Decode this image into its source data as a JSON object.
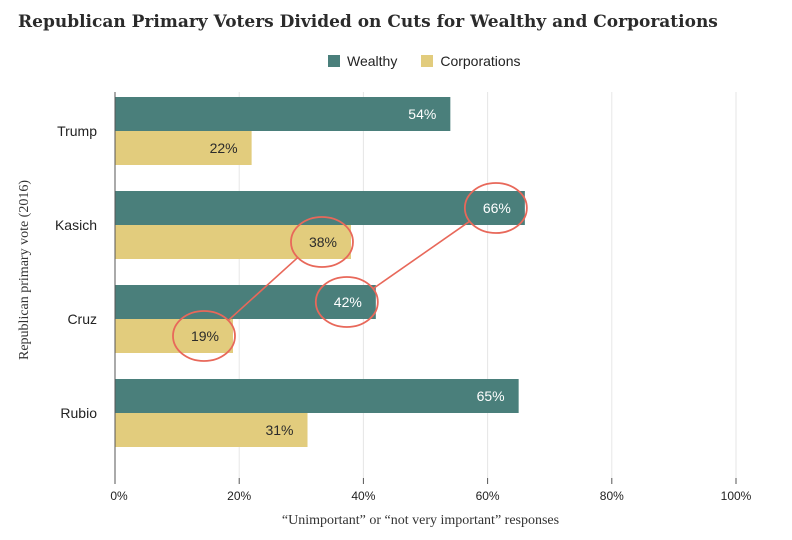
{
  "title": "Republican Primary Voters Divided on Cuts for Wealthy and Corporations",
  "legend": [
    {
      "name": "Wealthy",
      "color": "#4a7f7b"
    },
    {
      "name": "Corporations",
      "color": "#e2cc7d"
    }
  ],
  "colors": {
    "highlight": "#e8685a",
    "grid": "#e6e6e6",
    "axis": "#555555"
  },
  "chart_data": {
    "type": "bar",
    "orientation": "horizontal",
    "categories": [
      "Trump",
      "Kasich",
      "Cruz",
      "Rubio"
    ],
    "series": [
      {
        "name": "Wealthy",
        "values": [
          54,
          66,
          42,
          65
        ],
        "labels": [
          "54%",
          "66%",
          "42%",
          "65%"
        ]
      },
      {
        "name": "Corporations",
        "values": [
          22,
          38,
          19,
          31
        ],
        "labels": [
          "22%",
          "38%",
          "19%",
          "31%"
        ]
      }
    ],
    "xlabel": "“Unimportant” or “not very important” responses",
    "ylabel": "Republican primary vote (2016)",
    "xlim": [
      0,
      100
    ],
    "xticks": [
      0,
      20,
      40,
      60,
      80,
      100
    ],
    "xtick_labels": [
      "0%",
      "20%",
      "40%",
      "60%",
      "80%",
      "100%"
    ],
    "grid": "vertical",
    "legend_position": "top",
    "annotations": [
      {
        "type": "circle-connector",
        "series": "Corporations",
        "from": "Cruz",
        "to": "Kasich"
      },
      {
        "type": "circle-connector",
        "series": "Wealthy",
        "from": "Cruz",
        "to": "Kasich"
      }
    ]
  }
}
